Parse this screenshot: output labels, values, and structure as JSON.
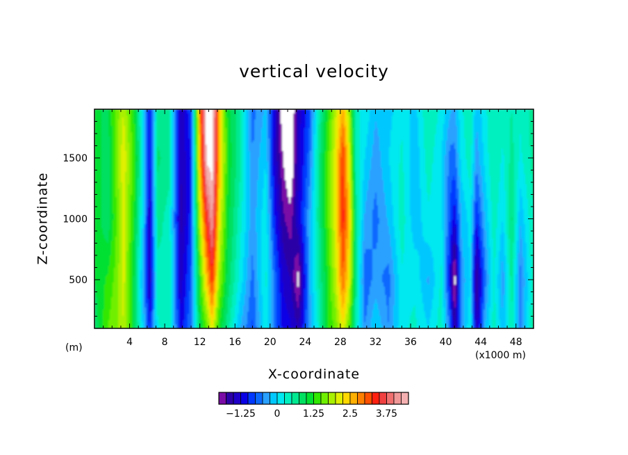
{
  "chart_data": {
    "type": "heatmap",
    "title": "vertical velocity",
    "xlabel": "X-coordinate",
    "ylabel": "Z-coordinate",
    "x_unit_left": "(m)",
    "x_unit_right": "(x1000 m)",
    "xlim": [
      0,
      50
    ],
    "ylim": [
      100,
      1900
    ],
    "x_ticks": [
      "4",
      "8",
      "12",
      "16",
      "20",
      "24",
      "28",
      "32",
      "36",
      "40",
      "44",
      "48"
    ],
    "y_ticks": [
      "500",
      "1000",
      "1500"
    ],
    "colorbar": {
      "min": -2.0,
      "max": 4.5,
      "step": 0.25,
      "labels": [
        "-1.25",
        "0",
        "1.25",
        "2.5",
        "3.75"
      ],
      "colors": [
        "#7a0ca5",
        "#2c00a6",
        "#1f00c8",
        "#0a00e6",
        "#0038ff",
        "#0a68ff",
        "#2aa0ff",
        "#00c8ff",
        "#00e8f0",
        "#00f0c0",
        "#00e890",
        "#00e060",
        "#00e030",
        "#30e800",
        "#70f000",
        "#a8f000",
        "#e0f000",
        "#ffd800",
        "#ffb000",
        "#ff8000",
        "#ff5000",
        "#ff2010",
        "#f04040",
        "#f07070",
        "#f09898",
        "#f4b0b0"
      ]
    },
    "field_values": {
      "x": [
        0,
        1.5,
        2.5,
        3.3,
        4.5,
        5.5,
        6.3,
        7.2,
        8.5,
        9.8,
        11,
        12,
        12.8,
        13.4,
        14.2,
        15.2,
        16.5,
        18,
        19.5,
        20.5,
        21.5,
        22.3,
        23.2,
        24.5,
        25.5,
        26.5,
        27.5,
        28.3,
        29,
        29.8,
        30.8,
        32,
        33.5,
        35,
        36.5,
        38,
        39.5,
        40.5,
        41,
        41.8,
        42.8,
        43.5,
        44.5,
        45.5,
        46.5,
        47.5,
        48.5,
        50
      ],
      "z": [
        100,
        500,
        1000,
        1500,
        1900
      ],
      "w": [
        [
          0.8,
          1.0,
          1.2,
          1.2,
          1.0
        ],
        [
          1.5,
          1.3,
          0.8,
          0.8,
          1.0
        ],
        [
          1.7,
          1.6,
          1.5,
          1.6,
          1.6
        ],
        [
          2.0,
          2.1,
          2.1,
          2.2,
          2.0
        ],
        [
          1.0,
          1.0,
          1.2,
          1.4,
          1.2
        ],
        [
          0.0,
          -0.3,
          0.0,
          0.2,
          0.0
        ],
        [
          -1.0,
          -1.5,
          -1.4,
          -1.2,
          -1.2
        ],
        [
          0.2,
          0.4,
          0.6,
          0.8,
          0.6
        ],
        [
          0.5,
          0.5,
          0.4,
          0.6,
          0.5
        ],
        [
          -1.2,
          -1.4,
          -1.6,
          -1.5,
          -1.5
        ],
        [
          -0.5,
          -0.7,
          -0.9,
          -1.0,
          -0.8
        ],
        [
          1.0,
          1.3,
          2.0,
          2.6,
          2.8
        ],
        [
          1.5,
          2.5,
          3.5,
          4.6,
          4.8
        ],
        [
          2.2,
          3.3,
          4.2,
          4.7,
          4.8
        ],
        [
          1.2,
          1.8,
          2.2,
          2.6,
          2.6
        ],
        [
          0.6,
          0.9,
          1.1,
          1.2,
          1.1
        ],
        [
          -0.2,
          0.2,
          0.4,
          0.6,
          0.6
        ],
        [
          -0.8,
          -0.6,
          -0.4,
          -0.5,
          -0.6
        ],
        [
          0.2,
          0.3,
          0.2,
          0.0,
          -0.2
        ],
        [
          -0.6,
          -0.6,
          -1.0,
          -1.3,
          -1.2
        ],
        [
          -1.1,
          -1.3,
          -1.7,
          -2.0,
          -2.3
        ],
        [
          -1.2,
          -1.5,
          -1.9,
          -2.4,
          -2.5
        ],
        [
          -1.5,
          -2.1,
          -1.3,
          -1.4,
          -1.4
        ],
        [
          -0.4,
          -0.3,
          -0.3,
          -0.6,
          -0.8
        ],
        [
          0.3,
          0.5,
          0.6,
          0.6,
          0.4
        ],
        [
          1.2,
          1.2,
          1.4,
          1.4,
          1.2
        ],
        [
          1.6,
          2.0,
          2.2,
          2.2,
          2.0
        ],
        [
          2.2,
          3.0,
          3.4,
          3.3,
          2.6
        ],
        [
          1.5,
          2.2,
          2.5,
          2.2,
          1.8
        ],
        [
          0.4,
          0.6,
          0.6,
          0.4,
          0.3
        ],
        [
          -0.5,
          -0.7,
          -0.3,
          0.0,
          0.2
        ],
        [
          0.0,
          -0.4,
          -0.6,
          -0.4,
          -0.2
        ],
        [
          -0.5,
          -0.6,
          -0.2,
          0.0,
          -0.1
        ],
        [
          0.2,
          0.2,
          0.4,
          0.3,
          0.2
        ],
        [
          0.3,
          0.2,
          -0.2,
          -0.2,
          -0.1
        ],
        [
          0.0,
          -0.3,
          0.2,
          0.4,
          0.5
        ],
        [
          0.4,
          0.3,
          0.1,
          0.0,
          0.2
        ],
        [
          -0.6,
          -1.2,
          -0.8,
          -0.6,
          -0.2
        ],
        [
          -1.6,
          -2.2,
          -1.2,
          -0.6,
          -0.3
        ],
        [
          -0.4,
          -0.4,
          -0.2,
          0.1,
          0.2
        ],
        [
          0.2,
          0.0,
          0.1,
          0.4,
          0.5
        ],
        [
          -1.5,
          -1.8,
          -1.0,
          -0.4,
          -0.2
        ],
        [
          -0.2,
          -0.6,
          -0.2,
          0.1,
          0.2
        ],
        [
          0.4,
          0.3,
          0.4,
          0.5,
          0.5
        ],
        [
          -0.2,
          -0.4,
          0.0,
          0.2,
          0.4
        ],
        [
          0.5,
          0.6,
          0.8,
          0.6,
          0.5
        ],
        [
          -0.6,
          -0.6,
          -0.2,
          0.2,
          0.3
        ],
        [
          0.6,
          0.5,
          0.5,
          0.6,
          0.6
        ]
      ]
    },
    "grid": false,
    "legend": "colorbar below plot"
  }
}
